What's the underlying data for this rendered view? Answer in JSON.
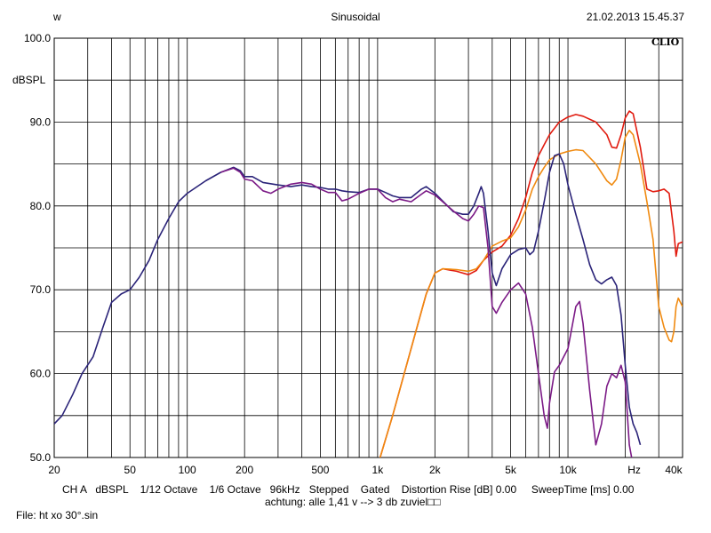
{
  "header": {
    "left": "w",
    "center": "Sinusoidal",
    "right": "21.02.2013 15.45.37"
  },
  "logo": "CLIO",
  "footer": {
    "line1": "CH A   dBSPL    1/12 Octave    1/6 Octave   96kHz   Stepped    Gated    Distortion Rise [dB] 0.00     SweepTime [ms] 0.00",
    "line2": "achtung: alle 1,41 v --> 3 db zuviel□□"
  },
  "file": "File: ht xo 30°.sin",
  "chart_data": {
    "type": "line",
    "xscale": "log",
    "xlim": [
      20,
      40000
    ],
    "ylim": [
      50,
      100
    ],
    "ylabel": "dBSPL",
    "xlabel": "Hz",
    "grid": true,
    "y_ticks": [
      "100.0",
      "90.0",
      "80.0",
      "70.0",
      "60.0",
      "50.0"
    ],
    "x_ticks": [
      {
        "value": 20,
        "label": "20"
      },
      {
        "value": 50,
        "label": "50"
      },
      {
        "value": 100,
        "label": "100"
      },
      {
        "value": 200,
        "label": "200"
      },
      {
        "value": 500,
        "label": "500"
      },
      {
        "value": 1000,
        "label": "1k"
      },
      {
        "value": 2000,
        "label": "2k"
      },
      {
        "value": 5000,
        "label": "5k"
      },
      {
        "value": 10000,
        "label": "10k"
      },
      {
        "value": 40000,
        "label": "40k"
      }
    ],
    "series": [
      {
        "color": "#e11a0e",
        "points": [
          [
            1000,
            49
          ],
          [
            1200,
            55
          ],
          [
            1500,
            63
          ],
          [
            1800,
            69.5
          ],
          [
            2000,
            72
          ],
          [
            2200,
            72.5
          ],
          [
            2600,
            72.2
          ],
          [
            3000,
            71.8
          ],
          [
            3300,
            72.3
          ],
          [
            3600,
            73.5
          ],
          [
            4000,
            74.5
          ],
          [
            4500,
            75.2
          ],
          [
            5000,
            76.5
          ],
          [
            5500,
            78.5
          ],
          [
            6000,
            81
          ],
          [
            6500,
            84
          ],
          [
            7000,
            86
          ],
          [
            7500,
            87.3
          ],
          [
            8000,
            88.5
          ],
          [
            9000,
            90
          ],
          [
            10000,
            90.6
          ],
          [
            11000,
            90.9
          ],
          [
            12000,
            90.7
          ],
          [
            14000,
            90
          ],
          [
            16000,
            88.5
          ],
          [
            17000,
            87
          ],
          [
            18000,
            86.9
          ],
          [
            19000,
            88.5
          ],
          [
            20000,
            90.5
          ],
          [
            21000,
            91.3
          ],
          [
            22000,
            91
          ],
          [
            24000,
            87
          ],
          [
            26000,
            82
          ],
          [
            28000,
            81.7
          ],
          [
            30000,
            81.8
          ],
          [
            32000,
            82
          ],
          [
            34000,
            81.5
          ],
          [
            36000,
            77
          ],
          [
            37000,
            74
          ],
          [
            38000,
            75.5
          ],
          [
            40000,
            75.7
          ]
        ]
      },
      {
        "color": "#f08a10",
        "points": [
          [
            1000,
            49
          ],
          [
            1200,
            55
          ],
          [
            1500,
            63
          ],
          [
            1800,
            69.5
          ],
          [
            2000,
            72
          ],
          [
            2200,
            72.5
          ],
          [
            2600,
            72.4
          ],
          [
            3000,
            72.2
          ],
          [
            3300,
            72.5
          ],
          [
            3600,
            73.5
          ],
          [
            4000,
            75.2
          ],
          [
            4500,
            75.8
          ],
          [
            5000,
            76.2
          ],
          [
            5500,
            77.5
          ],
          [
            6000,
            79.5
          ],
          [
            6500,
            82
          ],
          [
            7000,
            83.5
          ],
          [
            7500,
            84.6
          ],
          [
            8000,
            85.5
          ],
          [
            9000,
            86.2
          ],
          [
            10000,
            86.5
          ],
          [
            11000,
            86.7
          ],
          [
            12000,
            86.6
          ],
          [
            14000,
            85
          ],
          [
            16000,
            83
          ],
          [
            17000,
            82.5
          ],
          [
            18000,
            83.2
          ],
          [
            19000,
            85.5
          ],
          [
            20000,
            88.2
          ],
          [
            21000,
            89
          ],
          [
            22000,
            88.5
          ],
          [
            24000,
            85
          ],
          [
            26000,
            80.5
          ],
          [
            28000,
            76
          ],
          [
            30000,
            68
          ],
          [
            32000,
            65.5
          ],
          [
            34000,
            64
          ],
          [
            35000,
            63.8
          ],
          [
            36000,
            65
          ],
          [
            37000,
            68
          ],
          [
            38000,
            69
          ],
          [
            40000,
            68
          ]
        ]
      },
      {
        "color": "#2a2378",
        "points": [
          [
            20,
            54
          ],
          [
            22,
            55
          ],
          [
            25,
            57.5
          ],
          [
            28,
            60
          ],
          [
            32,
            62
          ],
          [
            36,
            65.5
          ],
          [
            40,
            68.5
          ],
          [
            45,
            69.5
          ],
          [
            50,
            70
          ],
          [
            56,
            71.5
          ],
          [
            63,
            73.5
          ],
          [
            70,
            76
          ],
          [
            80,
            78.5
          ],
          [
            90,
            80.5
          ],
          [
            100,
            81.5
          ],
          [
            125,
            83
          ],
          [
            150,
            84
          ],
          [
            175,
            84.6
          ],
          [
            190,
            84.2
          ],
          [
            200,
            83.5
          ],
          [
            220,
            83.5
          ],
          [
            250,
            82.8
          ],
          [
            300,
            82.5
          ],
          [
            350,
            82.3
          ],
          [
            400,
            82.5
          ],
          [
            450,
            82.3
          ],
          [
            500,
            82.2
          ],
          [
            550,
            82
          ],
          [
            600,
            82
          ],
          [
            650,
            81.8
          ],
          [
            700,
            81.7
          ],
          [
            800,
            81.6
          ],
          [
            900,
            82
          ],
          [
            1000,
            82
          ],
          [
            1100,
            81.6
          ],
          [
            1200,
            81.2
          ],
          [
            1300,
            81
          ],
          [
            1500,
            81
          ],
          [
            1700,
            82
          ],
          [
            1800,
            82.3
          ],
          [
            2000,
            81.5
          ],
          [
            2500,
            79.3
          ],
          [
            2800,
            79
          ],
          [
            3000,
            79
          ],
          [
            3200,
            80
          ],
          [
            3400,
            81.5
          ],
          [
            3500,
            82.3
          ],
          [
            3600,
            81.5
          ],
          [
            3800,
            77
          ],
          [
            4000,
            72
          ],
          [
            4200,
            70.5
          ],
          [
            4500,
            72.5
          ],
          [
            5000,
            74.2
          ],
          [
            5500,
            74.8
          ],
          [
            6000,
            75
          ],
          [
            6300,
            74.2
          ],
          [
            6600,
            74.6
          ],
          [
            7000,
            77
          ],
          [
            7500,
            80.5
          ],
          [
            8000,
            84
          ],
          [
            8500,
            86
          ],
          [
            9000,
            86.2
          ],
          [
            9500,
            85
          ],
          [
            10000,
            82.5
          ],
          [
            11000,
            79
          ],
          [
            12000,
            76
          ],
          [
            13000,
            73
          ],
          [
            14000,
            71.2
          ],
          [
            15000,
            70.7
          ],
          [
            16000,
            71.2
          ],
          [
            17000,
            71.5
          ],
          [
            18000,
            70.5
          ],
          [
            19000,
            67
          ],
          [
            20000,
            61
          ],
          [
            21000,
            56
          ],
          [
            22000,
            54
          ],
          [
            23000,
            53
          ],
          [
            24000,
            51.5
          ]
        ]
      },
      {
        "color": "#7b1a86",
        "points": [
          [
            150,
            84
          ],
          [
            175,
            84.5
          ],
          [
            190,
            84
          ],
          [
            200,
            83.2
          ],
          [
            220,
            83
          ],
          [
            250,
            81.8
          ],
          [
            275,
            81.5
          ],
          [
            300,
            82
          ],
          [
            350,
            82.6
          ],
          [
            400,
            82.8
          ],
          [
            450,
            82.6
          ],
          [
            500,
            82
          ],
          [
            550,
            81.6
          ],
          [
            600,
            81.6
          ],
          [
            650,
            80.6
          ],
          [
            700,
            80.8
          ],
          [
            800,
            81.5
          ],
          [
            900,
            82
          ],
          [
            1000,
            82
          ],
          [
            1100,
            81
          ],
          [
            1200,
            80.5
          ],
          [
            1300,
            80.8
          ],
          [
            1500,
            80.5
          ],
          [
            1700,
            81.4
          ],
          [
            1800,
            81.8
          ],
          [
            2000,
            81.3
          ],
          [
            2500,
            79.4
          ],
          [
            2800,
            78.5
          ],
          [
            3000,
            78.2
          ],
          [
            3200,
            79
          ],
          [
            3400,
            80
          ],
          [
            3600,
            79.8
          ],
          [
            3800,
            75
          ],
          [
            4000,
            68
          ],
          [
            4200,
            67.2
          ],
          [
            4500,
            68.5
          ],
          [
            5000,
            70
          ],
          [
            5500,
            70.8
          ],
          [
            6000,
            69.5
          ],
          [
            6500,
            65.5
          ],
          [
            7000,
            60
          ],
          [
            7500,
            55
          ],
          [
            7800,
            53.5
          ],
          [
            8000,
            56.5
          ],
          [
            8500,
            60.2
          ],
          [
            9000,
            61
          ],
          [
            10000,
            63
          ],
          [
            11000,
            68
          ],
          [
            11500,
            68.6
          ],
          [
            12000,
            66
          ],
          [
            13000,
            58
          ],
          [
            14000,
            51.5
          ],
          [
            15000,
            54
          ],
          [
            16000,
            58.5
          ],
          [
            17000,
            60
          ],
          [
            18000,
            59.5
          ],
          [
            19000,
            61
          ],
          [
            20000,
            59
          ],
          [
            21000,
            51.5
          ],
          [
            22000,
            49
          ]
        ]
      }
    ]
  }
}
